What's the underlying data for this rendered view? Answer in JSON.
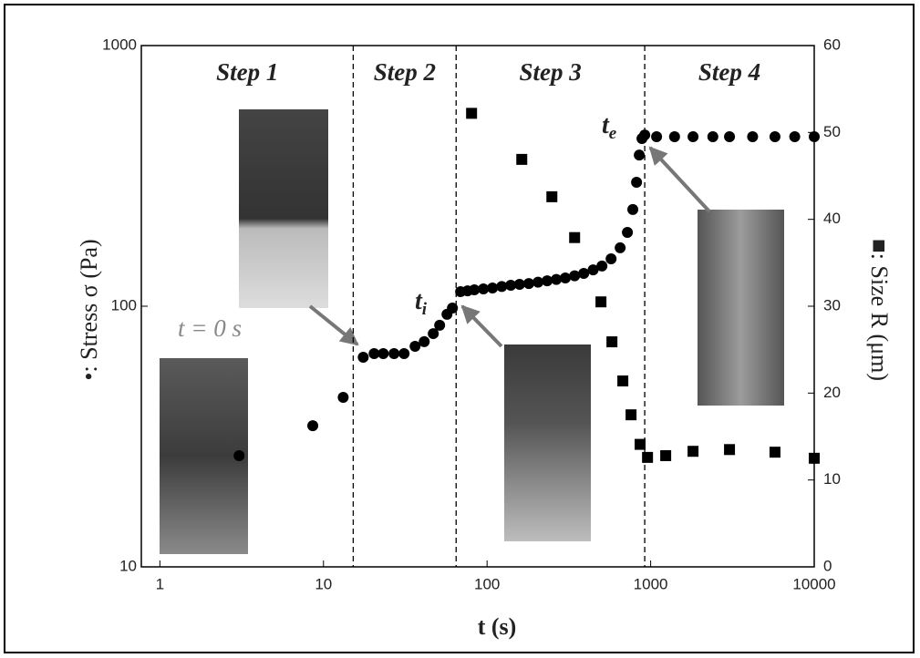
{
  "chart_data": {
    "type": "scatter",
    "xlabel": "t (s)",
    "ylabel": "•:  Stress  σ (Pa)",
    "y2label": "■:  Size  R (μm)",
    "xlog": true,
    "ylog": true,
    "xlim": [
      0.77,
      10000
    ],
    "ylim": [
      10,
      1000
    ],
    "y2lim": [
      0,
      60
    ],
    "xticks": [
      1,
      10,
      100,
      1000,
      10000
    ],
    "yticks": [
      10,
      100,
      1000
    ],
    "y2ticks": [
      0,
      10,
      20,
      30,
      40,
      50,
      60
    ],
    "steps": [
      "Step 1",
      "Step 2",
      "Step 3",
      "Step 4"
    ],
    "phase_boundaries": [
      15.2,
      64.7,
      920
    ],
    "annotations": {
      "t0": "t = 0 s",
      "ti": {
        "base": "t",
        "subscript": "i"
      },
      "te": {
        "base": "t",
        "subscript": "e"
      }
    },
    "series": [
      {
        "marker": "circle",
        "color": "#000000",
        "axis": "y",
        "x": [
          3.05,
          8.6,
          13.2,
          17.5,
          20.4,
          23.2,
          27,
          31.1,
          36.3,
          41.3,
          46.9,
          51.3,
          56.9,
          61.4,
          68.9,
          76,
          83.6,
          95,
          108,
          123,
          139.6,
          158,
          180,
          205,
          233,
          265,
          301,
          343,
          390,
          445,
          504,
          573,
          651,
          721,
          778,
          820,
          852,
          885,
          920,
          1087,
          1400,
          1816,
          2400,
          3034,
          4200,
          5754,
          7600,
          10000
        ],
        "values": [
          26.7,
          34.8,
          44.7,
          63.7,
          65.8,
          65.8,
          65.8,
          65.8,
          70.2,
          73.1,
          78.5,
          84.5,
          93.1,
          98.4,
          113.7,
          114.6,
          115.6,
          116.5,
          117.5,
          119,
          120.3,
          121.3,
          122.2,
          123.7,
          125.2,
          126.7,
          128.3,
          130.8,
          133.6,
          137.8,
          142.6,
          152,
          167.5,
          191.9,
          234.9,
          299,
          380,
          440,
          454,
          447,
          447,
          447,
          447,
          447,
          447,
          447,
          447,
          447
        ]
      },
      {
        "marker": "square",
        "color": "#000000",
        "axis": "y2",
        "x": [
          80.4,
          163,
          249,
          343,
          497,
          580,
          676,
          759,
          862,
          957,
          1236,
          1816,
          3034,
          5754,
          10000
        ],
        "values": [
          52.2,
          46.9,
          42.6,
          37.9,
          30.5,
          25.9,
          21.4,
          17.5,
          14.1,
          12.6,
          12.8,
          13.3,
          13.5,
          13.2,
          12.5
        ]
      }
    ]
  }
}
